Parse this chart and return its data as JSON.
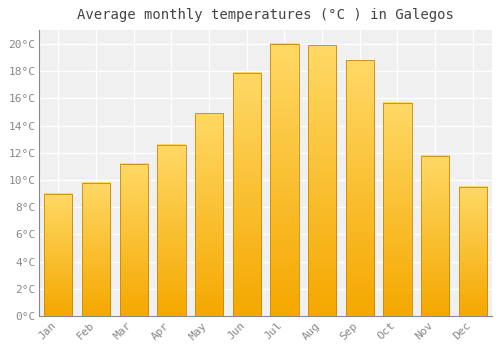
{
  "title": "Average monthly temperatures (°C ) in Galegos",
  "months": [
    "Jan",
    "Feb",
    "Mar",
    "Apr",
    "May",
    "Jun",
    "Jul",
    "Aug",
    "Sep",
    "Oct",
    "Nov",
    "Dec"
  ],
  "values": [
    9.0,
    9.8,
    11.2,
    12.6,
    14.9,
    17.9,
    20.0,
    19.9,
    18.8,
    15.7,
    11.8,
    9.5
  ],
  "bar_color_bottom": "#F5A800",
  "bar_color_top": "#FFD966",
  "bar_edge_color": "#C8880A",
  "ylim": [
    0,
    21
  ],
  "yticks": [
    0,
    2,
    4,
    6,
    8,
    10,
    12,
    14,
    16,
    18,
    20
  ],
  "ytick_labels": [
    "0°C",
    "2°C",
    "4°C",
    "6°C",
    "8°C",
    "10°C",
    "12°C",
    "14°C",
    "16°C",
    "18°C",
    "20°C"
  ],
  "background_color": "#ffffff",
  "plot_bg_color": "#f0f0f0",
  "grid_color": "#ffffff",
  "title_fontsize": 10,
  "tick_fontsize": 8,
  "title_color": "#444444",
  "tick_color": "#888888",
  "bar_width": 0.75
}
